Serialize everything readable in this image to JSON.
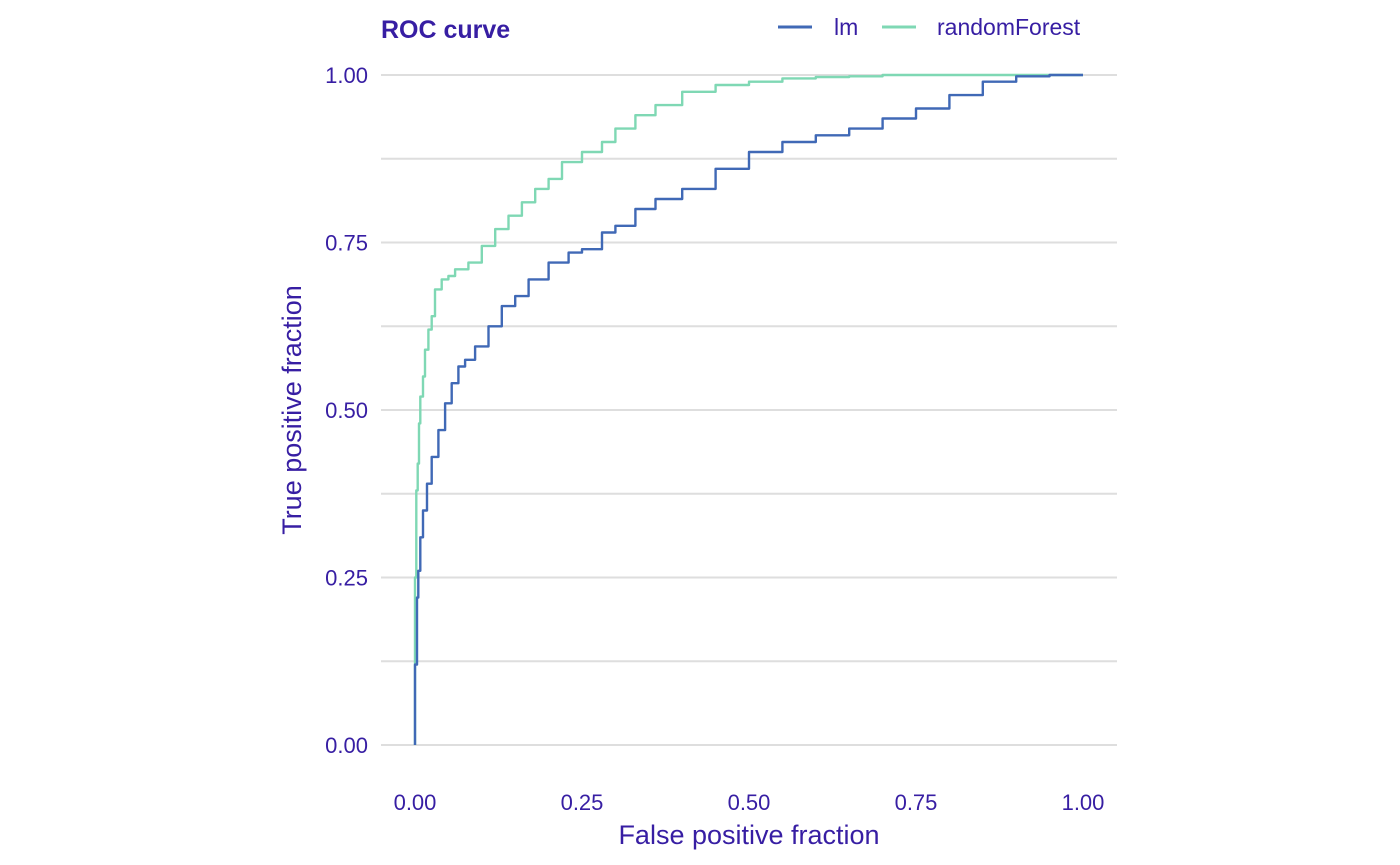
{
  "chart_data": {
    "type": "line",
    "title": "ROC curve",
    "xlabel": "False positive fraction",
    "ylabel": "True positive fraction",
    "xlim": [
      0,
      1
    ],
    "ylim": [
      0,
      1
    ],
    "xticks": [
      "0.00",
      "0.25",
      "0.50",
      "0.75",
      "1.00"
    ],
    "yticks": [
      "0.00",
      "0.25",
      "0.50",
      "0.75",
      "1.00"
    ],
    "grid": "horizontal major and minor lines",
    "legend_position": "top-right",
    "series": [
      {
        "name": "lm",
        "color": "#4069b6",
        "x": [
          0.0,
          0.003,
          0.005,
          0.008,
          0.012,
          0.018,
          0.025,
          0.035,
          0.045,
          0.055,
          0.065,
          0.075,
          0.09,
          0.11,
          0.13,
          0.15,
          0.17,
          0.2,
          0.23,
          0.25,
          0.28,
          0.3,
          0.33,
          0.36,
          0.4,
          0.45,
          0.5,
          0.55,
          0.6,
          0.65,
          0.7,
          0.75,
          0.8,
          0.85,
          0.9,
          0.95,
          1.0
        ],
        "y": [
          0.0,
          0.12,
          0.22,
          0.26,
          0.31,
          0.35,
          0.39,
          0.43,
          0.47,
          0.51,
          0.54,
          0.565,
          0.575,
          0.595,
          0.625,
          0.655,
          0.67,
          0.695,
          0.72,
          0.735,
          0.74,
          0.765,
          0.775,
          0.8,
          0.815,
          0.83,
          0.86,
          0.885,
          0.9,
          0.91,
          0.92,
          0.935,
          0.95,
          0.97,
          0.99,
          0.998,
          1.0
        ]
      },
      {
        "name": "randomForest",
        "color": "#7fd8b4",
        "x": [
          0.0,
          0.002,
          0.004,
          0.006,
          0.008,
          0.012,
          0.015,
          0.02,
          0.025,
          0.03,
          0.04,
          0.05,
          0.06,
          0.08,
          0.1,
          0.12,
          0.14,
          0.16,
          0.18,
          0.2,
          0.22,
          0.25,
          0.28,
          0.3,
          0.33,
          0.36,
          0.4,
          0.45,
          0.5,
          0.55,
          0.6,
          0.65,
          0.7,
          0.8,
          0.9,
          1.0
        ],
        "y": [
          0.0,
          0.25,
          0.38,
          0.42,
          0.48,
          0.52,
          0.55,
          0.59,
          0.62,
          0.64,
          0.68,
          0.695,
          0.7,
          0.71,
          0.72,
          0.745,
          0.77,
          0.79,
          0.81,
          0.83,
          0.845,
          0.87,
          0.885,
          0.9,
          0.92,
          0.94,
          0.955,
          0.975,
          0.985,
          0.99,
          0.995,
          0.997,
          0.998,
          1.0,
          1.0,
          1.0
        ]
      }
    ]
  }
}
